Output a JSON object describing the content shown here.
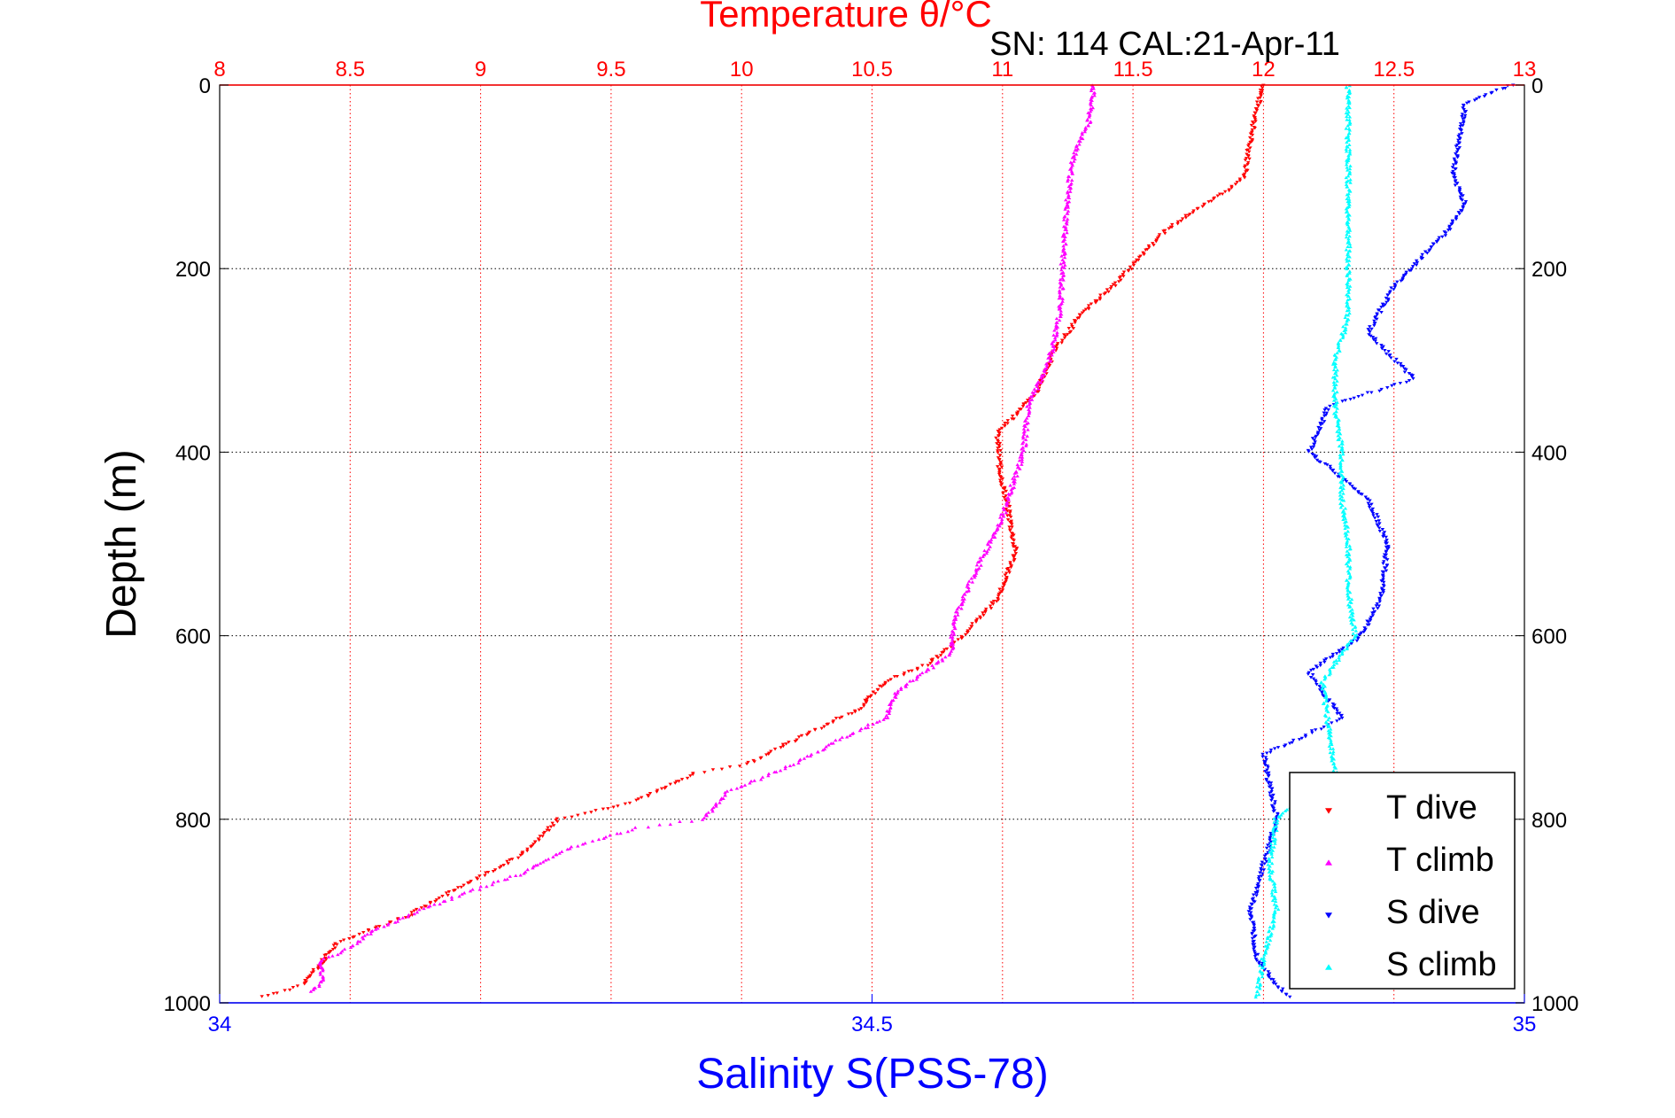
{
  "header": {
    "serial": "SN: 114  CAL:21-Apr-11"
  },
  "colors": {
    "temperature_axis": "#ff0000",
    "salinity_axis": "#0000ff",
    "t_dive": "#ff0000",
    "t_climb": "#ff00ff",
    "s_dive": "#0000ff",
    "s_climb": "#00ffff"
  },
  "chart_data": {
    "type": "scatter",
    "title": "Temperature θ/°C",
    "xlabel_top": "Temperature θ/°C",
    "xlabel_bottom": "Salinity S(PSS-78)",
    "ylabel": "Depth (m)",
    "ylim": [
      0,
      1000
    ],
    "y_reversed": true,
    "yticks": [
      "0",
      "200",
      "400",
      "600",
      "800",
      "1000"
    ],
    "temperature_axis": {
      "lim": [
        8,
        13
      ],
      "ticks": [
        "8",
        "8.5",
        "9",
        "9.5",
        "10",
        "10.5",
        "11",
        "11.5",
        "12",
        "12.5",
        "13"
      ]
    },
    "salinity_axis": {
      "lim": [
        34,
        35
      ],
      "ticks": [
        "34",
        "34.5",
        "35"
      ]
    },
    "grid": true,
    "legend_position": "bottom-right",
    "series": [
      {
        "name": "T dive",
        "axis": "temperature",
        "marker": "triangle-down",
        "points": [
          [
            12.0,
            0
          ],
          [
            11.98,
            20
          ],
          [
            11.95,
            60
          ],
          [
            11.93,
            100
          ],
          [
            11.85,
            118
          ],
          [
            11.74,
            135
          ],
          [
            11.62,
            160
          ],
          [
            11.52,
            190
          ],
          [
            11.42,
            220
          ],
          [
            11.3,
            250
          ],
          [
            11.2,
            290
          ],
          [
            11.14,
            330
          ],
          [
            11.05,
            360
          ],
          [
            10.98,
            380
          ],
          [
            10.99,
            420
          ],
          [
            11.02,
            460
          ],
          [
            11.05,
            510
          ],
          [
            10.98,
            560
          ],
          [
            10.85,
            600
          ],
          [
            10.72,
            630
          ],
          [
            10.55,
            650
          ],
          [
            10.45,
            680
          ],
          [
            10.3,
            700
          ],
          [
            10.02,
            740
          ],
          [
            9.82,
            750
          ],
          [
            9.6,
            780
          ],
          [
            9.3,
            800
          ],
          [
            9.15,
            840
          ],
          [
            8.95,
            870
          ],
          [
            8.72,
            905
          ],
          [
            8.45,
            935
          ],
          [
            8.38,
            960
          ],
          [
            8.32,
            980
          ],
          [
            8.15,
            995
          ]
        ]
      },
      {
        "name": "T climb",
        "axis": "temperature",
        "marker": "triangle-up",
        "points": [
          [
            11.35,
            0
          ],
          [
            11.33,
            40
          ],
          [
            11.27,
            80
          ],
          [
            11.25,
            120
          ],
          [
            11.23,
            200
          ],
          [
            11.22,
            250
          ],
          [
            11.18,
            300
          ],
          [
            11.1,
            350
          ],
          [
            11.08,
            400
          ],
          [
            11.0,
            470
          ],
          [
            10.95,
            500
          ],
          [
            10.88,
            540
          ],
          [
            10.82,
            580
          ],
          [
            10.8,
            620
          ],
          [
            10.6,
            660
          ],
          [
            10.55,
            690
          ],
          [
            10.4,
            710
          ],
          [
            10.2,
            740
          ],
          [
            9.95,
            770
          ],
          [
            9.85,
            800
          ],
          [
            9.6,
            810
          ],
          [
            9.35,
            830
          ],
          [
            9.15,
            860
          ],
          [
            8.85,
            890
          ],
          [
            8.6,
            920
          ],
          [
            8.5,
            940
          ],
          [
            8.38,
            955
          ],
          [
            8.4,
            975
          ],
          [
            8.35,
            990
          ]
        ]
      },
      {
        "name": "S dive",
        "axis": "salinity",
        "marker": "triangle-down",
        "points": [
          [
            34.99,
            0
          ],
          [
            34.955,
            20
          ],
          [
            34.945,
            100
          ],
          [
            34.955,
            130
          ],
          [
            34.94,
            160
          ],
          [
            34.9,
            220
          ],
          [
            34.88,
            270
          ],
          [
            34.915,
            320
          ],
          [
            34.85,
            350
          ],
          [
            34.835,
            400
          ],
          [
            34.88,
            450
          ],
          [
            34.895,
            500
          ],
          [
            34.89,
            560
          ],
          [
            34.875,
            600
          ],
          [
            34.835,
            640
          ],
          [
            34.86,
            690
          ],
          [
            34.8,
            730
          ],
          [
            34.81,
            800
          ],
          [
            34.8,
            850
          ],
          [
            34.79,
            900
          ],
          [
            34.795,
            950
          ],
          [
            34.81,
            980
          ],
          [
            34.82,
            995
          ]
        ]
      },
      {
        "name": "S climb",
        "axis": "salinity",
        "marker": "triangle-up",
        "points": [
          [
            34.865,
            0
          ],
          [
            34.865,
            50
          ],
          [
            34.865,
            150
          ],
          [
            34.865,
            250
          ],
          [
            34.855,
            300
          ],
          [
            34.855,
            350
          ],
          [
            34.86,
            400
          ],
          [
            34.86,
            450
          ],
          [
            34.865,
            500
          ],
          [
            34.865,
            550
          ],
          [
            34.87,
            600
          ],
          [
            34.845,
            650
          ],
          [
            34.85,
            700
          ],
          [
            34.855,
            750
          ],
          [
            34.81,
            800
          ],
          [
            34.805,
            850
          ],
          [
            34.81,
            900
          ],
          [
            34.8,
            950
          ],
          [
            34.795,
            995
          ]
        ]
      }
    ]
  }
}
